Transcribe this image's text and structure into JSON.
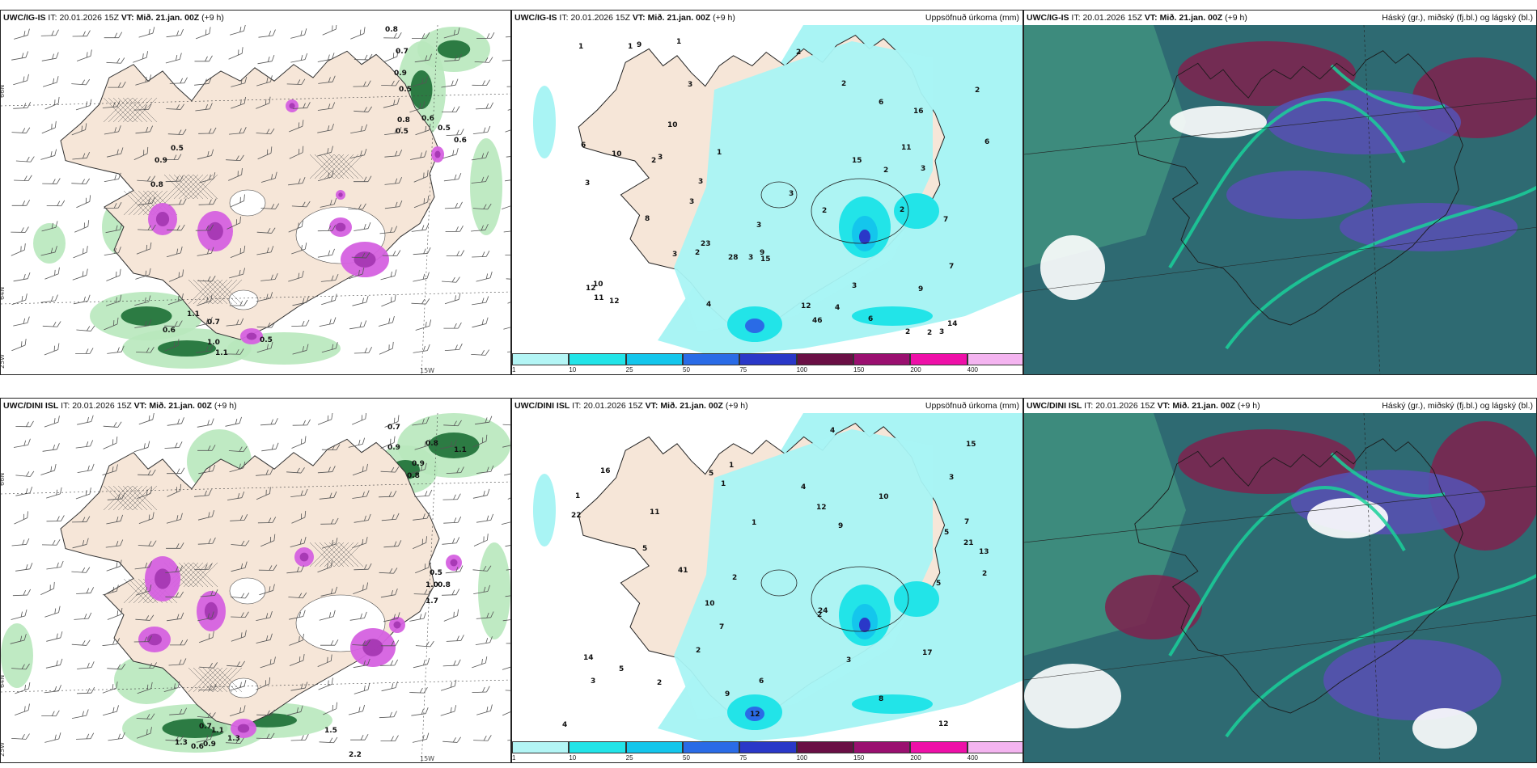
{
  "rows": [
    {
      "model": "UWC/IG-IS",
      "panels": [
        {
          "it_label": "IT:",
          "it_value": "20.01.2026 15Z",
          "vt_label": "VT:",
          "vt_value": "Mið. 21.jan. 00Z",
          "lead": "(+9 h)",
          "right_title": ""
        },
        {
          "it_label": "IT:",
          "it_value": "20.01.2026 15Z",
          "vt_label": "VT:",
          "vt_value": "Mið. 21.jan. 00Z",
          "lead": "(+9 h)",
          "right_title": "Uppsöfnuð úrkoma (mm)"
        },
        {
          "it_label": "IT:",
          "it_value": "20.01.2026 15Z",
          "vt_label": "VT:",
          "vt_value": "Mið. 21.jan. 00Z",
          "lead": "(+9 h)",
          "right_title": "Háský (gr.), miðský (fj.bl.) og lágský (bl.)"
        }
      ],
      "wind_labels": [
        "0.8",
        "0.7",
        "0.9",
        "0.5",
        "0.8",
        "0.5",
        "0.6",
        "0.5",
        "0.6",
        "0.5",
        "0.9",
        "0.8",
        "1.1",
        "0.7",
        "1.0",
        "1.1",
        "0.5",
        "0.6"
      ],
      "precip_labels": [
        "3",
        "2",
        "1",
        "2",
        "3",
        "3",
        "3",
        "3",
        "2",
        "2",
        "3",
        "2",
        "1",
        "2",
        "3",
        "3",
        "3",
        "6",
        "2",
        "1",
        "2",
        "3",
        "4",
        "3",
        "9",
        "15",
        "12",
        "10",
        "16",
        "12",
        "23",
        "28",
        "12",
        "7",
        "6",
        "6",
        "10",
        "9",
        "8",
        "4",
        "3",
        "14",
        "7",
        "6",
        "15",
        "11",
        "9",
        "10",
        "1",
        "2",
        "46",
        "11",
        "2"
      ],
      "axis": {
        "lat_top": "66N",
        "lat_bottom": "64N",
        "lon_left": "25W",
        "lon_bottom": "15W"
      }
    },
    {
      "model": "UWC/DINI ISL",
      "panels": [
        {
          "it_label": "IT:",
          "it_value": "20.01.2026 15Z",
          "vt_label": "VT:",
          "vt_value": "Mið. 21.jan. 00Z",
          "lead": "(+9 h)",
          "right_title": ""
        },
        {
          "it_label": "IT:",
          "it_value": "20.01.2026 15Z",
          "vt_label": "VT:",
          "vt_value": "Mið. 21.jan. 00Z",
          "lead": "(+9 h)",
          "right_title": "Uppsöfnuð úrkoma (mm)"
        },
        {
          "it_label": "IT:",
          "it_value": "20.01.2026 15Z",
          "vt_label": "VT:",
          "vt_value": "Mið. 21.jan. 00Z",
          "lead": "(+9 h)",
          "right_title": "Háský (gr.), miðský (fj.bl.) og lágský (bl.)"
        }
      ],
      "wind_labels": [
        "0.7",
        "0.9",
        "0.8",
        "0.9",
        "1.1",
        "0.8",
        "1.0",
        "0.5",
        "0.8",
        "1.7",
        "1.3",
        "0.7",
        "0.9",
        "0.6",
        "1.3",
        "1.1",
        "2.2",
        "1.5"
      ],
      "precip_labels": [
        "2",
        "4",
        "6",
        "3",
        "2",
        "5",
        "3",
        "2",
        "3",
        "4",
        "5",
        "7",
        "10",
        "12",
        "16",
        "11",
        "21",
        "24",
        "13",
        "9",
        "5",
        "7",
        "5",
        "2",
        "1",
        "1",
        "22",
        "17",
        "14",
        "15",
        "12",
        "10",
        "41",
        "12",
        "8",
        "9",
        "4",
        "1",
        "2",
        "5",
        "1"
      ],
      "axis": {
        "lat_top": "66N",
        "lat_bottom": "64N",
        "lon_left": "25W",
        "lon_bottom": "15W"
      }
    }
  ],
  "precip_legend": {
    "ticks": [
      "1",
      "10",
      "25",
      "50",
      "75",
      "100",
      "150",
      "200",
      "400"
    ],
    "colors": [
      "#b3f5f5",
      "#22e4e8",
      "#14c6ec",
      "#2a6be6",
      "#2a38c8",
      "#6a0f45",
      "#9a1070",
      "#ee10a8",
      "#f4b4f0"
    ]
  },
  "colors": {
    "land": "#f6e6d8",
    "sea_precip": "#a9f4f4",
    "green_light": "#b8e8bd",
    "green_dark": "#1c6f35",
    "magenta": "#d561e0",
    "cloud_bg": "#2e6a72",
    "cloud_high": "#7b2650",
    "cloud_mid": "#5651b0",
    "cloud_low": "#1ad19a"
  }
}
